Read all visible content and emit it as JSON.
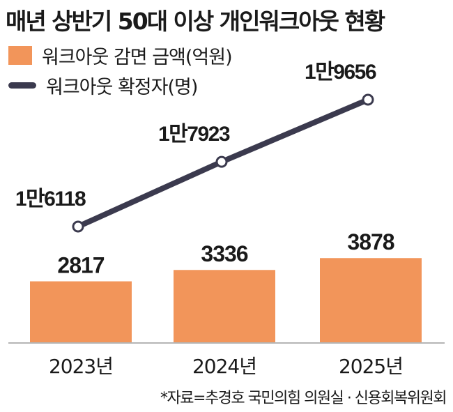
{
  "title": "매년 상반기 50대 이상 개인워크아웃 현황",
  "legend": {
    "bar_label": "워크아웃 감면 금액(억원)",
    "line_label": "워크아웃 확정자(명)"
  },
  "source": "*자료=추경호 국민의힘 의원실 · 신용회복위원회",
  "colors": {
    "bar": "#f2955a",
    "line": "#3b3a4e",
    "text": "#1a1a1a"
  },
  "chart_data": {
    "type": "bar",
    "categories": [
      "2023년",
      "2024년",
      "2025년"
    ],
    "series": [
      {
        "name": "워크아웃 감면 금액(억원)",
        "type": "bar",
        "values": [
          2817,
          3336,
          3878
        ],
        "labels": [
          "2817",
          "3336",
          "3878"
        ]
      },
      {
        "name": "워크아웃 확정자(명)",
        "type": "line",
        "values": [
          16118,
          17923,
          19656
        ],
        "labels": [
          "1만6118",
          "1만7923",
          "1만9656"
        ]
      }
    ]
  }
}
